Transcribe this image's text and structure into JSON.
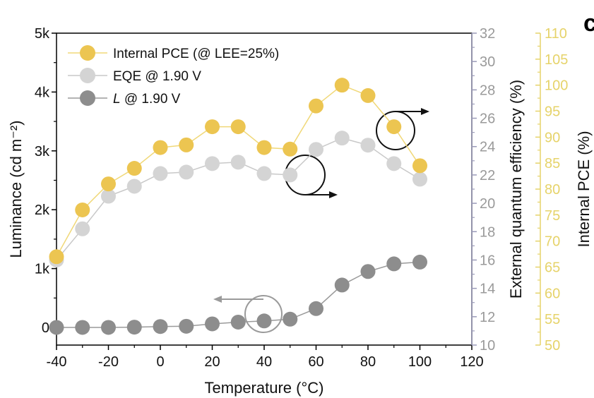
{
  "chart_data": {
    "type": "scatter",
    "panel_label": "c",
    "xlabel": "Temperature (°C)",
    "ylabel_left": "Luminance (cd m⁻²)",
    "ylabel_right1": "External quantum efficiency (%)",
    "ylabel_right2": "Internal PCE (%)",
    "xlim": [
      -40,
      120
    ],
    "ylim_left": [
      -300,
      5000
    ],
    "ylim_right1": [
      10,
      32
    ],
    "ylim_right2": [
      50,
      110
    ],
    "x_ticks": [
      -40,
      -20,
      0,
      20,
      40,
      60,
      80,
      100,
      120
    ],
    "y_left_ticks": [
      0,
      1000,
      2000,
      3000,
      4000,
      5000
    ],
    "y_left_tick_labels": [
      "0",
      "1k",
      "2k",
      "3k",
      "4k",
      "5k"
    ],
    "y_right1_ticks": [
      10,
      12,
      14,
      16,
      18,
      20,
      22,
      24,
      26,
      28,
      30,
      32
    ],
    "y_right2_ticks": [
      50,
      55,
      60,
      65,
      70,
      75,
      80,
      85,
      90,
      95,
      100,
      105,
      110
    ],
    "colors": {
      "pce": "#ecc551",
      "pce_line": "#f0d878",
      "eqe": "#d4d4d4",
      "eqe_line": "#c8c8c8",
      "lum": "#8d8d8d",
      "lum_line": "#9a9a9a",
      "axis_right1": "#9a9ab8",
      "axis_right2": "#e6d36a"
    },
    "series": [
      {
        "name": "Internal PCE (@ LEE=25%)",
        "axis": "right2",
        "x": [
          -40,
          -30,
          -20,
          -10,
          0,
          10,
          20,
          30,
          40,
          50,
          60,
          70,
          80,
          90,
          100
        ],
        "y": [
          67,
          76,
          81,
          84,
          88,
          88.5,
          92,
          92,
          88,
          87.7,
          96,
          100,
          98,
          92,
          84.5
        ]
      },
      {
        "name": "EQE @ 1.90 V",
        "axis": "right1",
        "x": [
          -40,
          -30,
          -20,
          -10,
          0,
          10,
          20,
          30,
          40,
          50,
          60,
          70,
          80,
          90,
          100
        ],
        "y": [
          16,
          18.2,
          20.5,
          21.2,
          22.1,
          22.2,
          22.8,
          22.9,
          22.1,
          22.0,
          23.8,
          24.6,
          24.1,
          22.8,
          21.7
        ]
      },
      {
        "name": "L @ 1.90 V",
        "axis": "left",
        "x": [
          -40,
          -30,
          -20,
          -10,
          0,
          10,
          20,
          30,
          40,
          50,
          60,
          70,
          80,
          90,
          100
        ],
        "y": [
          0,
          0,
          0,
          5,
          15,
          20,
          60,
          90,
          110,
          140,
          320,
          720,
          950,
          1080,
          1110
        ]
      }
    ],
    "legend": [
      {
        "label": "Internal PCE (@ LEE=25%)",
        "series": 0
      },
      {
        "label": "EQE @ 1.90 V",
        "series": 1
      },
      {
        "label_italic": "L",
        "label_rest": " @ 1.90 V",
        "series": 2
      }
    ]
  }
}
